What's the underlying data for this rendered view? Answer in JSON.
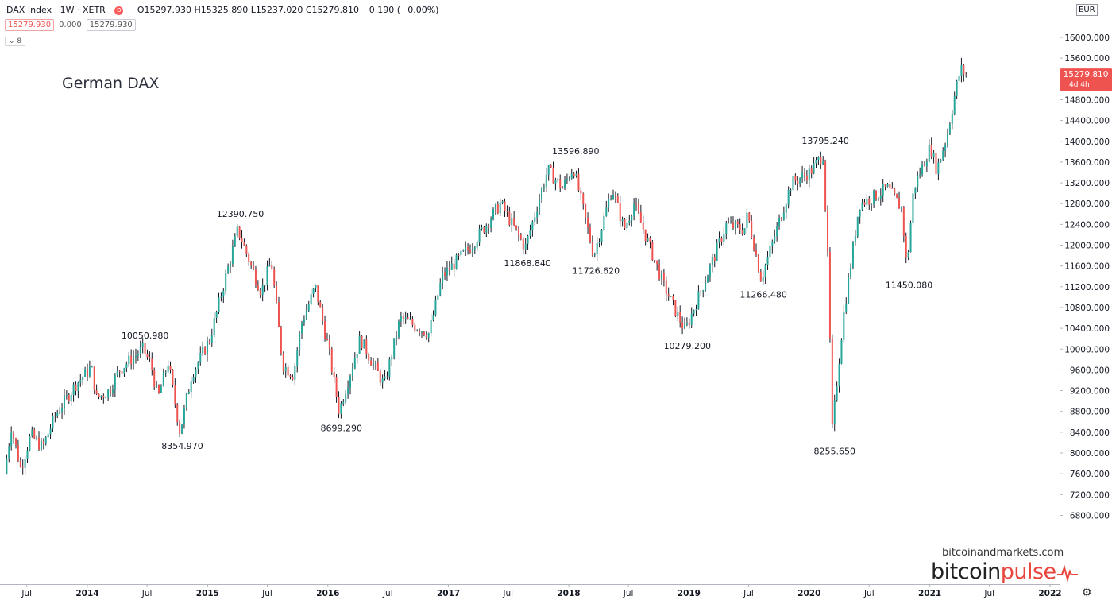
{
  "header": {
    "symbol_line": "DAX Index · 1W · XETR",
    "badge": "D",
    "ohlc_line": "O15297.930 H15325.890 L15237.020 C15279.810 −0.190 (−0.00%)",
    "price_box_left": "15279.930",
    "price_mid": "0.000",
    "price_box_right": "15279.930",
    "indicator_count": "8"
  },
  "currency": "EUR",
  "watermark": {
    "site": "bitcoinandmarkets.com",
    "brand_a": "bitcoin",
    "brand_b": "pulse"
  },
  "colors": {
    "up": "#26a69a",
    "down": "#ef5350",
    "candle": "#131722",
    "last_price": "#ef5350",
    "brand": "#e8453c"
  },
  "last_price": {
    "value": 15279.81,
    "label": "15279.810",
    "countdown": "4d 4h"
  },
  "chart_data": {
    "type": "candlestick",
    "title": "German DAX",
    "interval": "1W",
    "ylim": [
      6600,
      16200
    ],
    "xlim": [
      "2013-05-01",
      "2022-01-15"
    ],
    "y_ticks": [
      {
        "value": 16000,
        "label": "16000.000"
      },
      {
        "value": 15600,
        "label": "15600.000"
      },
      {
        "value": 15200,
        "label": "15200.000"
      },
      {
        "value": 14800,
        "label": "14800.000"
      },
      {
        "value": 14400,
        "label": "14400.000"
      },
      {
        "value": 14000,
        "label": "14000.000"
      },
      {
        "value": 13600,
        "label": "13600.000"
      },
      {
        "value": 13200,
        "label": "13200.000"
      },
      {
        "value": 12800,
        "label": "12800.000"
      },
      {
        "value": 12400,
        "label": "12400.000"
      },
      {
        "value": 12000,
        "label": "12000.000"
      },
      {
        "value": 11600,
        "label": "11600.000"
      },
      {
        "value": 11200,
        "label": "11200.000"
      },
      {
        "value": 10800,
        "label": "10800.000"
      },
      {
        "value": 10400,
        "label": "10400.000"
      },
      {
        "value": 10000,
        "label": "10000.000"
      },
      {
        "value": 9600,
        "label": "9600.000"
      },
      {
        "value": 9200,
        "label": "9200.000"
      },
      {
        "value": 8800,
        "label": "8800.000"
      },
      {
        "value": 8400,
        "label": "8400.000"
      },
      {
        "value": 8000,
        "label": "8000.000"
      },
      {
        "value": 7600,
        "label": "7600.000"
      },
      {
        "value": 7200,
        "label": "7200.000"
      },
      {
        "value": 6800,
        "label": "6800.000"
      }
    ],
    "x_ticks": [
      {
        "date": "2013-07-01",
        "label": "Jul",
        "bold": false
      },
      {
        "date": "2014-01-01",
        "label": "2014",
        "bold": true
      },
      {
        "date": "2014-07-01",
        "label": "Jul",
        "bold": false
      },
      {
        "date": "2015-01-01",
        "label": "2015",
        "bold": true
      },
      {
        "date": "2015-07-01",
        "label": "Jul",
        "bold": false
      },
      {
        "date": "2016-01-01",
        "label": "2016",
        "bold": true
      },
      {
        "date": "2016-07-01",
        "label": "Jul",
        "bold": false
      },
      {
        "date": "2017-01-01",
        "label": "2017",
        "bold": true
      },
      {
        "date": "2017-07-01",
        "label": "Jul",
        "bold": false
      },
      {
        "date": "2018-01-01",
        "label": "2018",
        "bold": true
      },
      {
        "date": "2018-07-01",
        "label": "Jul",
        "bold": false
      },
      {
        "date": "2019-01-01",
        "label": "2019",
        "bold": true
      },
      {
        "date": "2019-07-01",
        "label": "Jul",
        "bold": false
      },
      {
        "date": "2020-01-01",
        "label": "2020",
        "bold": true
      },
      {
        "date": "2020-07-01",
        "label": "Jul",
        "bold": false
      },
      {
        "date": "2021-01-01",
        "label": "2021",
        "bold": true
      },
      {
        "date": "2021-07-01",
        "label": "Jul",
        "bold": false
      },
      {
        "date": "2022-01-01",
        "label": "2022",
        "bold": true
      }
    ],
    "price_path": [
      {
        "date": "2013-05-01",
        "value": 7600
      },
      {
        "date": "2013-05-22",
        "value": 8500
      },
      {
        "date": "2013-06-20",
        "value": 7700
      },
      {
        "date": "2013-07-20",
        "value": 8350
      },
      {
        "date": "2013-08-25",
        "value": 8100
      },
      {
        "date": "2013-10-01",
        "value": 8700
      },
      {
        "date": "2013-12-01",
        "value": 9300
      },
      {
        "date": "2014-01-20",
        "value": 9650
      },
      {
        "date": "2014-02-05",
        "value": 9050
      },
      {
        "date": "2014-03-15",
        "value": 9200
      },
      {
        "date": "2014-04-15",
        "value": 9600
      },
      {
        "date": "2014-05-20",
        "value": 9800
      },
      {
        "date": "2014-06-25",
        "value": 10000
      },
      {
        "date": "2014-07-20",
        "value": 9700
      },
      {
        "date": "2014-08-10",
        "value": 9050
      },
      {
        "date": "2014-09-10",
        "value": 9750
      },
      {
        "date": "2014-10-16",
        "value": 8400
      },
      {
        "date": "2014-11-20",
        "value": 9500
      },
      {
        "date": "2014-12-15",
        "value": 9800
      },
      {
        "date": "2015-01-15",
        "value": 10200
      },
      {
        "date": "2015-02-20",
        "value": 11100
      },
      {
        "date": "2015-04-10",
        "value": 12300
      },
      {
        "date": "2015-05-20",
        "value": 11600
      },
      {
        "date": "2015-06-20",
        "value": 11100
      },
      {
        "date": "2015-07-20",
        "value": 11700
      },
      {
        "date": "2015-08-24",
        "value": 9700
      },
      {
        "date": "2015-09-25",
        "value": 9500
      },
      {
        "date": "2015-10-20",
        "value": 10500
      },
      {
        "date": "2015-12-01",
        "value": 11200
      },
      {
        "date": "2016-01-10",
        "value": 10000
      },
      {
        "date": "2016-02-11",
        "value": 8800
      },
      {
        "date": "2016-04-15",
        "value": 10200
      },
      {
        "date": "2016-06-27",
        "value": 9300
      },
      {
        "date": "2016-08-15",
        "value": 10600
      },
      {
        "date": "2016-11-10",
        "value": 10300
      },
      {
        "date": "2016-12-20",
        "value": 11400
      },
      {
        "date": "2017-03-20",
        "value": 12000
      },
      {
        "date": "2017-06-15",
        "value": 12800
      },
      {
        "date": "2017-08-29",
        "value": 11950
      },
      {
        "date": "2017-11-05",
        "value": 13450
      },
      {
        "date": "2017-12-20",
        "value": 13100
      },
      {
        "date": "2018-01-22",
        "value": 13500
      },
      {
        "date": "2018-03-25",
        "value": 11800
      },
      {
        "date": "2018-05-20",
        "value": 13100
      },
      {
        "date": "2018-06-25",
        "value": 12300
      },
      {
        "date": "2018-07-25",
        "value": 12800
      },
      {
        "date": "2018-10-25",
        "value": 11200
      },
      {
        "date": "2018-12-27",
        "value": 10350
      },
      {
        "date": "2019-03-15",
        "value": 11600
      },
      {
        "date": "2019-05-01",
        "value": 12400
      },
      {
        "date": "2019-06-25",
        "value": 12300
      },
      {
        "date": "2019-07-05",
        "value": 12600
      },
      {
        "date": "2019-08-15",
        "value": 11350
      },
      {
        "date": "2019-10-01",
        "value": 12300
      },
      {
        "date": "2019-11-15",
        "value": 13200
      },
      {
        "date": "2020-01-10",
        "value": 13400
      },
      {
        "date": "2020-02-19",
        "value": 13750
      },
      {
        "date": "2020-03-05",
        "value": 11600
      },
      {
        "date": "2020-03-18",
        "value": 8450
      },
      {
        "date": "2020-04-20",
        "value": 10600
      },
      {
        "date": "2020-06-08",
        "value": 12800
      },
      {
        "date": "2020-07-15",
        "value": 12900
      },
      {
        "date": "2020-09-01",
        "value": 13100
      },
      {
        "date": "2020-10-15",
        "value": 12700
      },
      {
        "date": "2020-10-30",
        "value": 11550
      },
      {
        "date": "2020-11-20",
        "value": 13100
      },
      {
        "date": "2021-01-10",
        "value": 13900
      },
      {
        "date": "2021-01-29",
        "value": 13450
      },
      {
        "date": "2021-03-01",
        "value": 14100
      },
      {
        "date": "2021-03-28",
        "value": 15000
      },
      {
        "date": "2021-04-12",
        "value": 15400
      },
      {
        "date": "2021-04-26",
        "value": 15280
      }
    ],
    "annotations": [
      {
        "date": "2014-06-25",
        "value": 10050.98,
        "label": "10050.980",
        "pos": "above"
      },
      {
        "date": "2014-10-16",
        "value": 8354.97,
        "label": "8354.970",
        "pos": "below"
      },
      {
        "date": "2015-04-10",
        "value": 12390.75,
        "label": "12390.750",
        "pos": "above"
      },
      {
        "date": "2016-02-11",
        "value": 8699.29,
        "label": "8699.290",
        "pos": "below"
      },
      {
        "date": "2017-08-29",
        "value": 11868.84,
        "label": "11868.840",
        "pos": "below"
      },
      {
        "date": "2018-01-22",
        "value": 13596.89,
        "label": "13596.890",
        "pos": "above"
      },
      {
        "date": "2018-03-25",
        "value": 11726.62,
        "label": "11726.620",
        "pos": "below"
      },
      {
        "date": "2018-12-27",
        "value": 10279.2,
        "label": "10279.200",
        "pos": "below"
      },
      {
        "date": "2019-08-15",
        "value": 11266.48,
        "label": "11266.480",
        "pos": "below"
      },
      {
        "date": "2020-02-19",
        "value": 13795.24,
        "label": "13795.240",
        "pos": "above"
      },
      {
        "date": "2020-03-18",
        "value": 8255.65,
        "label": "8255.650",
        "pos": "below"
      },
      {
        "date": "2020-10-30",
        "value": 11450.08,
        "label": "11450.080",
        "pos": "below"
      }
    ]
  }
}
